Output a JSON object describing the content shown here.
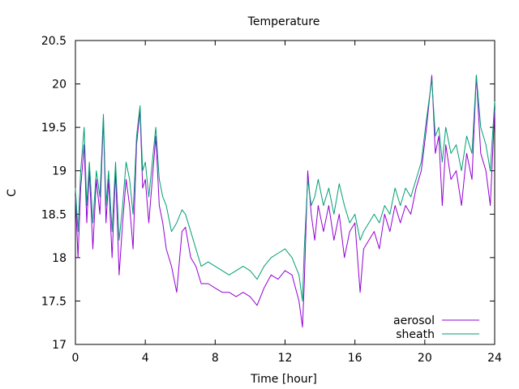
{
  "chart_data": {
    "type": "line",
    "title": "Temperature",
    "xlabel": "Time [hour]",
    "ylabel": "C",
    "xlim": [
      0,
      24
    ],
    "ylim": [
      17,
      20.5
    ],
    "xticks": [
      0,
      4,
      8,
      12,
      16,
      20,
      24
    ],
    "xtick_labels": [
      "0",
      "4",
      "8",
      "12",
      "16",
      "20",
      "24"
    ],
    "yticks": [
      17,
      17.5,
      18,
      18.5,
      19,
      19.5,
      20,
      20.5
    ],
    "ytick_labels": [
      "17",
      "17.5",
      "18",
      "18.5",
      "19",
      "19.5",
      "20",
      "20.5"
    ],
    "grid": false,
    "legend_position": "bottom-right",
    "series": [
      {
        "name": "aerosol",
        "color": "#9400d3",
        "x": [
          0,
          0.15,
          0.3,
          0.5,
          0.65,
          0.8,
          1.0,
          1.2,
          1.4,
          1.6,
          1.75,
          1.9,
          2.1,
          2.3,
          2.5,
          2.7,
          2.9,
          3.1,
          3.3,
          3.5,
          3.7,
          3.85,
          4.0,
          4.2,
          4.4,
          4.6,
          4.8,
          5.0,
          5.2,
          5.5,
          5.8,
          6.1,
          6.3,
          6.6,
          6.9,
          7.2,
          7.6,
          8.0,
          8.4,
          8.8,
          9.2,
          9.6,
          10.0,
          10.4,
          10.8,
          11.2,
          11.6,
          12.0,
          12.4,
          12.8,
          13.0,
          13.1,
          13.3,
          13.5,
          13.7,
          13.9,
          14.2,
          14.5,
          14.8,
          15.1,
          15.4,
          15.7,
          16.0,
          16.3,
          16.5,
          16.8,
          17.1,
          17.4,
          17.7,
          18.0,
          18.3,
          18.6,
          18.9,
          19.2,
          19.5,
          19.8,
          20.1,
          20.4,
          20.6,
          20.8,
          21.0,
          21.2,
          21.5,
          21.8,
          22.1,
          22.4,
          22.7,
          22.95,
          23.2,
          23.5,
          23.75,
          24.0
        ],
        "y": [
          18.7,
          18.0,
          18.8,
          19.3,
          18.4,
          19.0,
          18.1,
          18.9,
          18.5,
          19.6,
          18.4,
          18.9,
          18.0,
          19.0,
          17.8,
          18.4,
          18.9,
          18.6,
          18.1,
          19.3,
          19.7,
          18.8,
          18.9,
          18.4,
          18.9,
          19.4,
          18.6,
          18.4,
          18.1,
          17.9,
          17.6,
          18.3,
          18.35,
          18.0,
          17.9,
          17.7,
          17.7,
          17.65,
          17.6,
          17.6,
          17.55,
          17.6,
          17.55,
          17.45,
          17.65,
          17.8,
          17.75,
          17.85,
          17.8,
          17.5,
          17.2,
          17.7,
          19.0,
          18.5,
          18.2,
          18.6,
          18.3,
          18.6,
          18.2,
          18.5,
          18.0,
          18.3,
          18.4,
          17.6,
          18.1,
          18.2,
          18.3,
          18.1,
          18.5,
          18.3,
          18.6,
          18.4,
          18.6,
          18.5,
          18.8,
          19.0,
          19.5,
          20.1,
          19.2,
          19.4,
          18.6,
          19.3,
          18.9,
          19.0,
          18.6,
          19.2,
          18.9,
          20.1,
          19.2,
          19.0,
          18.6,
          19.7
        ]
      },
      {
        "name": "sheath",
        "color": "#009e73",
        "x": [
          0,
          0.15,
          0.3,
          0.5,
          0.65,
          0.8,
          1.0,
          1.2,
          1.4,
          1.6,
          1.75,
          1.9,
          2.1,
          2.3,
          2.5,
          2.7,
          2.9,
          3.1,
          3.3,
          3.5,
          3.7,
          3.85,
          4.0,
          4.2,
          4.4,
          4.6,
          4.8,
          5.0,
          5.2,
          5.5,
          5.8,
          6.1,
          6.3,
          6.6,
          6.9,
          7.2,
          7.6,
          8.0,
          8.4,
          8.8,
          9.2,
          9.6,
          10.0,
          10.4,
          10.8,
          11.2,
          11.6,
          12.0,
          12.4,
          12.8,
          13.0,
          13.1,
          13.3,
          13.5,
          13.7,
          13.9,
          14.2,
          14.5,
          14.8,
          15.1,
          15.4,
          15.7,
          16.0,
          16.3,
          16.5,
          16.8,
          17.1,
          17.4,
          17.7,
          18.0,
          18.3,
          18.6,
          18.9,
          19.2,
          19.5,
          19.8,
          20.1,
          20.4,
          20.6,
          20.8,
          21.0,
          21.2,
          21.5,
          21.8,
          22.1,
          22.4,
          22.7,
          22.95,
          23.2,
          23.5,
          23.75,
          24.0
        ],
        "y": [
          18.8,
          18.3,
          19.0,
          19.5,
          18.6,
          19.1,
          18.4,
          19.0,
          18.7,
          19.65,
          18.6,
          19.0,
          18.3,
          19.1,
          18.2,
          18.6,
          19.1,
          18.9,
          18.5,
          19.4,
          19.75,
          19.0,
          19.1,
          18.7,
          19.1,
          19.5,
          18.9,
          18.7,
          18.6,
          18.3,
          18.4,
          18.55,
          18.5,
          18.3,
          18.1,
          17.9,
          17.95,
          17.9,
          17.85,
          17.8,
          17.85,
          17.9,
          17.85,
          17.75,
          17.9,
          18.0,
          18.05,
          18.1,
          18.0,
          17.8,
          17.5,
          18.1,
          18.9,
          18.6,
          18.7,
          18.9,
          18.6,
          18.8,
          18.5,
          18.85,
          18.6,
          18.4,
          18.5,
          18.2,
          18.3,
          18.4,
          18.5,
          18.4,
          18.6,
          18.5,
          18.8,
          18.6,
          18.8,
          18.7,
          18.9,
          19.1,
          19.6,
          20.05,
          19.4,
          19.5,
          19.1,
          19.5,
          19.2,
          19.3,
          19.0,
          19.4,
          19.2,
          20.1,
          19.5,
          19.3,
          19.0,
          19.8
        ]
      }
    ]
  }
}
